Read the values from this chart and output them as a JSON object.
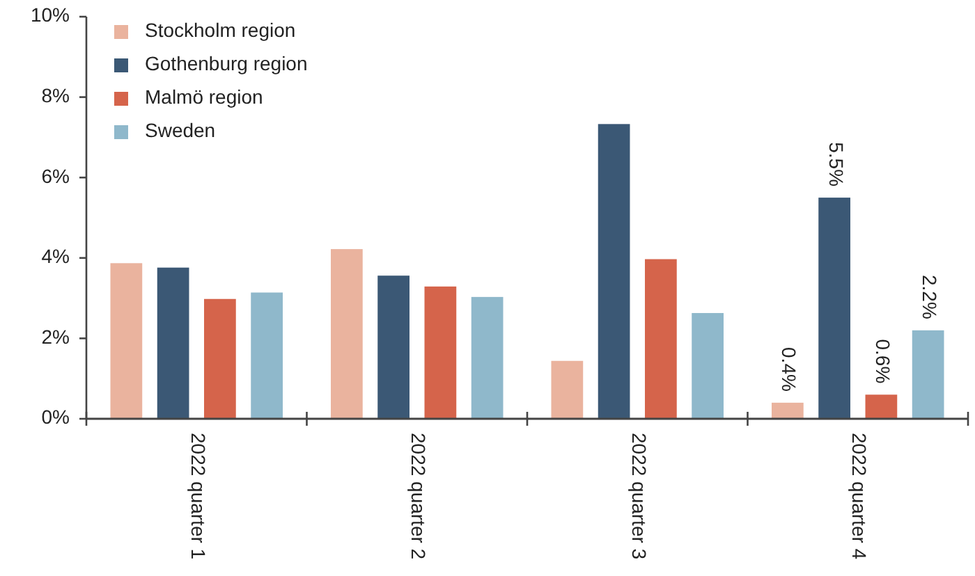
{
  "chart_data": {
    "type": "bar",
    "categories": [
      "2022 quarter 1",
      "2022 quarter 2",
      "2022 quarter 3",
      "2022 quarter 4"
    ],
    "series": [
      {
        "name": "Stockholm region",
        "color": "#eab39e",
        "values": [
          3.87,
          4.22,
          1.44,
          0.4
        ],
        "value_labels": [
          null,
          null,
          null,
          "0.4%"
        ]
      },
      {
        "name": "Gothenburg region",
        "color": "#3b5875",
        "values": [
          3.76,
          3.56,
          7.33,
          5.5
        ],
        "value_labels": [
          null,
          null,
          null,
          "5.5%"
        ]
      },
      {
        "name": "Malmö region",
        "color": "#d5644b",
        "values": [
          2.98,
          3.29,
          3.97,
          0.6
        ],
        "value_labels": [
          null,
          null,
          null,
          "0.6%"
        ]
      },
      {
        "name": "Sweden",
        "color": "#8fb8cb",
        "values": [
          3.14,
          3.03,
          2.63,
          2.2
        ],
        "value_labels": [
          null,
          null,
          null,
          "2.2%"
        ]
      }
    ],
    "ylim": [
      0,
      10
    ],
    "yticks": [
      {
        "value": 0,
        "label": "0%"
      },
      {
        "value": 2,
        "label": "2%"
      },
      {
        "value": 4,
        "label": "4%"
      },
      {
        "value": 6,
        "label": "6%"
      },
      {
        "value": 8,
        "label": "8%"
      },
      {
        "value": 10,
        "label": "10%"
      }
    ],
    "grid": false,
    "legend": "top left"
  }
}
